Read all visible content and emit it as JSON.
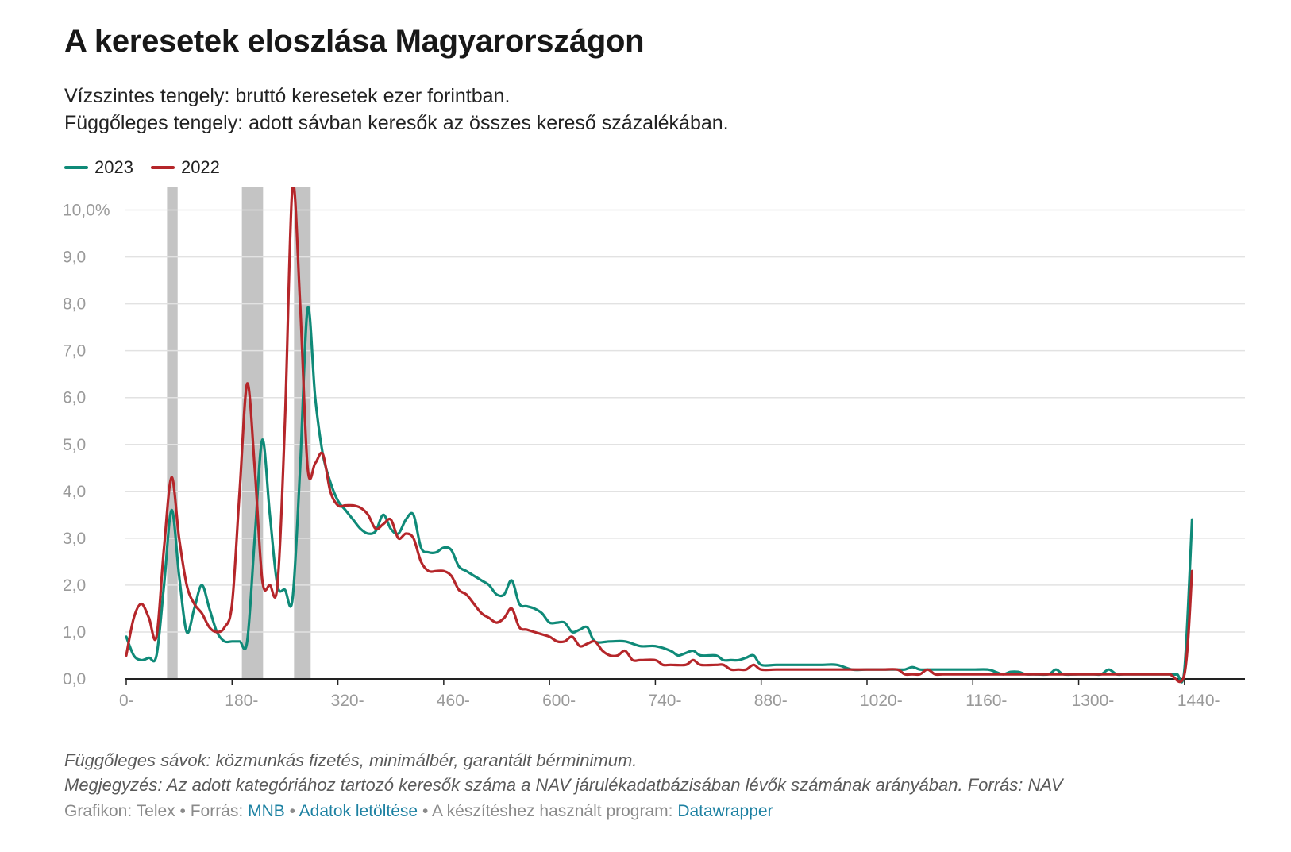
{
  "header": {
    "title": "A keresetek eloszlása Magyarországon",
    "subtitle_line1": "Vízszintes tengely: bruttó keresetek ezer forintban.",
    "subtitle_line2": "Függőleges tengely: adott sávban keresők az összes kereső százalékában."
  },
  "legend": [
    {
      "label": "2023",
      "color": "#0f8a78"
    },
    {
      "label": "2022",
      "color": "#b5262a"
    }
  ],
  "notes": {
    "line1": "Függőleges sávok: közmunkás fizetés, minimálbér, garantált bérminimum.",
    "line2": "Megjegyzés: Az adott kategóriához tartozó keresők száma a NAV járulékadatbázisában lévők számának arányában. Forrás: NAV"
  },
  "footer": {
    "credit": "Grafikon: Telex",
    "source_label": "Forrás:",
    "source_link": "MNB",
    "download_link": "Adatok letöltése",
    "tool_label": "A készítéshez használt program:",
    "tool_link": "Datawrapper",
    "separator": "•"
  },
  "chart_data": {
    "type": "line",
    "xlim": [
      0,
      1480
    ],
    "ylim": [
      0,
      10.5
    ],
    "grid": true,
    "legend_position": "top-left",
    "y_ticks": [
      {
        "value": 0,
        "label": "0,0"
      },
      {
        "value": 1,
        "label": "1,0"
      },
      {
        "value": 2,
        "label": "2,0"
      },
      {
        "value": 3,
        "label": "3,0"
      },
      {
        "value": 4,
        "label": "4,0"
      },
      {
        "value": 5,
        "label": "5,0"
      },
      {
        "value": 6,
        "label": "6,0"
      },
      {
        "value": 7,
        "label": "7,0"
      },
      {
        "value": 8,
        "label": "8,0"
      },
      {
        "value": 9,
        "label": "9,0"
      },
      {
        "value": 10,
        "label": "10,0%"
      }
    ],
    "x_ticks": [
      {
        "value": 0,
        "label": "0-"
      },
      {
        "value": 140,
        "label": "180-"
      },
      {
        "value": 280,
        "label": "320-"
      },
      {
        "value": 420,
        "label": "460-"
      },
      {
        "value": 560,
        "label": "600-"
      },
      {
        "value": 700,
        "label": "740-"
      },
      {
        "value": 840,
        "label": "880-"
      },
      {
        "value": 980,
        "label": "1020-"
      },
      {
        "value": 1120,
        "label": "1160-"
      },
      {
        "value": 1260,
        "label": "1300-"
      },
      {
        "value": 1400,
        "label": "1440-"
      }
    ],
    "bands": [
      {
        "from": 54,
        "to": 68,
        "color": "#c4c4c4"
      },
      {
        "from": 153,
        "to": 181,
        "color": "#c4c4c4"
      },
      {
        "from": 222,
        "to": 244,
        "color": "#c4c4c4"
      }
    ],
    "series": [
      {
        "name": "2023",
        "color": "#0f8a78",
        "points": [
          [
            0,
            0.9
          ],
          [
            10,
            0.5
          ],
          [
            20,
            0.4
          ],
          [
            30,
            0.45
          ],
          [
            40,
            0.5
          ],
          [
            50,
            2.0
          ],
          [
            60,
            3.6
          ],
          [
            70,
            2.2
          ],
          [
            80,
            1.0
          ],
          [
            90,
            1.5
          ],
          [
            100,
            2.0
          ],
          [
            110,
            1.5
          ],
          [
            120,
            1.0
          ],
          [
            130,
            0.8
          ],
          [
            140,
            0.8
          ],
          [
            150,
            0.8
          ],
          [
            160,
            0.8
          ],
          [
            170,
            3.0
          ],
          [
            180,
            5.1
          ],
          [
            190,
            3.5
          ],
          [
            200,
            2.0
          ],
          [
            210,
            1.9
          ],
          [
            220,
            1.7
          ],
          [
            230,
            4.5
          ],
          [
            240,
            7.9
          ],
          [
            250,
            6.0
          ],
          [
            260,
            4.8
          ],
          [
            270,
            4.2
          ],
          [
            280,
            3.8
          ],
          [
            290,
            3.6
          ],
          [
            300,
            3.4
          ],
          [
            310,
            3.2
          ],
          [
            320,
            3.1
          ],
          [
            330,
            3.15
          ],
          [
            340,
            3.5
          ],
          [
            350,
            3.2
          ],
          [
            360,
            3.1
          ],
          [
            370,
            3.4
          ],
          [
            380,
            3.5
          ],
          [
            390,
            2.8
          ],
          [
            400,
            2.7
          ],
          [
            410,
            2.7
          ],
          [
            420,
            2.8
          ],
          [
            430,
            2.75
          ],
          [
            440,
            2.4
          ],
          [
            450,
            2.3
          ],
          [
            460,
            2.2
          ],
          [
            470,
            2.1
          ],
          [
            480,
            2.0
          ],
          [
            490,
            1.8
          ],
          [
            500,
            1.8
          ],
          [
            510,
            2.1
          ],
          [
            520,
            1.6
          ],
          [
            530,
            1.55
          ],
          [
            540,
            1.5
          ],
          [
            550,
            1.4
          ],
          [
            560,
            1.2
          ],
          [
            570,
            1.2
          ],
          [
            580,
            1.2
          ],
          [
            590,
            1.0
          ],
          [
            600,
            1.05
          ],
          [
            610,
            1.1
          ],
          [
            620,
            0.8
          ],
          [
            640,
            0.8
          ],
          [
            660,
            0.8
          ],
          [
            680,
            0.7
          ],
          [
            700,
            0.7
          ],
          [
            720,
            0.6
          ],
          [
            730,
            0.5
          ],
          [
            740,
            0.55
          ],
          [
            750,
            0.6
          ],
          [
            760,
            0.5
          ],
          [
            780,
            0.5
          ],
          [
            790,
            0.4
          ],
          [
            800,
            0.4
          ],
          [
            810,
            0.4
          ],
          [
            820,
            0.45
          ],
          [
            830,
            0.5
          ],
          [
            840,
            0.3
          ],
          [
            860,
            0.3
          ],
          [
            880,
            0.3
          ],
          [
            900,
            0.3
          ],
          [
            920,
            0.3
          ],
          [
            940,
            0.3
          ],
          [
            960,
            0.2
          ],
          [
            980,
            0.2
          ],
          [
            1000,
            0.2
          ],
          [
            1020,
            0.2
          ],
          [
            1030,
            0.2
          ],
          [
            1040,
            0.25
          ],
          [
            1050,
            0.2
          ],
          [
            1060,
            0.2
          ],
          [
            1080,
            0.2
          ],
          [
            1100,
            0.2
          ],
          [
            1120,
            0.2
          ],
          [
            1140,
            0.2
          ],
          [
            1150,
            0.15
          ],
          [
            1160,
            0.1
          ],
          [
            1170,
            0.15
          ],
          [
            1180,
            0.15
          ],
          [
            1190,
            0.1
          ],
          [
            1200,
            0.1
          ],
          [
            1220,
            0.1
          ],
          [
            1230,
            0.2
          ],
          [
            1240,
            0.1
          ],
          [
            1260,
            0.1
          ],
          [
            1280,
            0.1
          ],
          [
            1290,
            0.1
          ],
          [
            1300,
            0.2
          ],
          [
            1310,
            0.1
          ],
          [
            1320,
            0.1
          ],
          [
            1330,
            0.1
          ],
          [
            1340,
            0.1
          ],
          [
            1350,
            0.1
          ],
          [
            1360,
            0.1
          ],
          [
            1370,
            0.1
          ],
          [
            1380,
            0.1
          ],
          [
            1390,
            0.1
          ],
          [
            1400,
            0.2
          ],
          [
            1410,
            3.4
          ]
        ]
      },
      {
        "name": "2022",
        "color": "#b5262a",
        "points": [
          [
            0,
            0.5
          ],
          [
            10,
            1.3
          ],
          [
            20,
            1.6
          ],
          [
            30,
            1.3
          ],
          [
            40,
            0.9
          ],
          [
            50,
            2.8
          ],
          [
            60,
            4.3
          ],
          [
            70,
            3.0
          ],
          [
            80,
            2.0
          ],
          [
            90,
            1.6
          ],
          [
            100,
            1.4
          ],
          [
            110,
            1.1
          ],
          [
            120,
            1.0
          ],
          [
            130,
            1.1
          ],
          [
            140,
            1.6
          ],
          [
            150,
            4.0
          ],
          [
            160,
            6.3
          ],
          [
            170,
            4.5
          ],
          [
            180,
            2.1
          ],
          [
            190,
            2.0
          ],
          [
            200,
            2.0
          ],
          [
            210,
            5.5
          ],
          [
            220,
            10.5
          ],
          [
            230,
            8.0
          ],
          [
            240,
            4.5
          ],
          [
            250,
            4.6
          ],
          [
            260,
            4.8
          ],
          [
            270,
            4.0
          ],
          [
            280,
            3.7
          ],
          [
            290,
            3.7
          ],
          [
            300,
            3.7
          ],
          [
            310,
            3.65
          ],
          [
            320,
            3.5
          ],
          [
            330,
            3.2
          ],
          [
            340,
            3.3
          ],
          [
            350,
            3.4
          ],
          [
            360,
            3.0
          ],
          [
            370,
            3.1
          ],
          [
            380,
            3.0
          ],
          [
            390,
            2.5
          ],
          [
            400,
            2.3
          ],
          [
            410,
            2.3
          ],
          [
            420,
            2.3
          ],
          [
            430,
            2.2
          ],
          [
            440,
            1.9
          ],
          [
            450,
            1.8
          ],
          [
            460,
            1.6
          ],
          [
            470,
            1.4
          ],
          [
            480,
            1.3
          ],
          [
            490,
            1.2
          ],
          [
            500,
            1.3
          ],
          [
            510,
            1.5
          ],
          [
            520,
            1.1
          ],
          [
            530,
            1.05
          ],
          [
            540,
            1.0
          ],
          [
            550,
            0.95
          ],
          [
            560,
            0.9
          ],
          [
            570,
            0.8
          ],
          [
            580,
            0.8
          ],
          [
            590,
            0.9
          ],
          [
            600,
            0.7
          ],
          [
            610,
            0.75
          ],
          [
            620,
            0.8
          ],
          [
            630,
            0.6
          ],
          [
            640,
            0.5
          ],
          [
            650,
            0.5
          ],
          [
            660,
            0.6
          ],
          [
            670,
            0.4
          ],
          [
            680,
            0.4
          ],
          [
            700,
            0.4
          ],
          [
            710,
            0.3
          ],
          [
            720,
            0.3
          ],
          [
            740,
            0.3
          ],
          [
            750,
            0.4
          ],
          [
            760,
            0.3
          ],
          [
            780,
            0.3
          ],
          [
            790,
            0.3
          ],
          [
            800,
            0.2
          ],
          [
            810,
            0.2
          ],
          [
            820,
            0.2
          ],
          [
            830,
            0.3
          ],
          [
            840,
            0.2
          ],
          [
            860,
            0.2
          ],
          [
            880,
            0.2
          ],
          [
            900,
            0.2
          ],
          [
            920,
            0.2
          ],
          [
            940,
            0.2
          ],
          [
            960,
            0.2
          ],
          [
            980,
            0.2
          ],
          [
            1000,
            0.2
          ],
          [
            1020,
            0.2
          ],
          [
            1030,
            0.1
          ],
          [
            1040,
            0.1
          ],
          [
            1050,
            0.1
          ],
          [
            1060,
            0.2
          ],
          [
            1070,
            0.1
          ],
          [
            1080,
            0.1
          ],
          [
            1100,
            0.1
          ],
          [
            1120,
            0.1
          ],
          [
            1140,
            0.1
          ],
          [
            1160,
            0.1
          ],
          [
            1180,
            0.1
          ],
          [
            1200,
            0.1
          ],
          [
            1220,
            0.1
          ],
          [
            1240,
            0.1
          ],
          [
            1260,
            0.1
          ],
          [
            1280,
            0.1
          ],
          [
            1300,
            0.1
          ],
          [
            1320,
            0.1
          ],
          [
            1340,
            0.1
          ],
          [
            1360,
            0.1
          ],
          [
            1380,
            0.1
          ],
          [
            1400,
            0.1
          ],
          [
            1410,
            2.3
          ]
        ]
      }
    ]
  }
}
